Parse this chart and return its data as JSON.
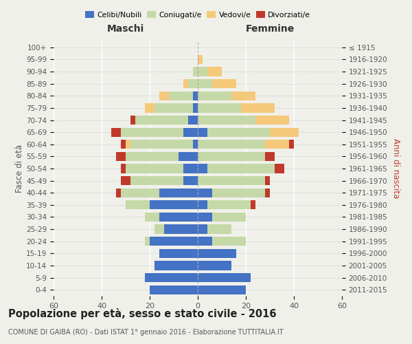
{
  "age_groups": [
    "0-4",
    "5-9",
    "10-14",
    "15-19",
    "20-24",
    "25-29",
    "30-34",
    "35-39",
    "40-44",
    "45-49",
    "50-54",
    "55-59",
    "60-64",
    "65-69",
    "70-74",
    "75-79",
    "80-84",
    "85-89",
    "90-94",
    "95-99",
    "100+"
  ],
  "birth_years": [
    "2011-2015",
    "2006-2010",
    "2001-2005",
    "1996-2000",
    "1991-1995",
    "1986-1990",
    "1981-1985",
    "1976-1980",
    "1971-1975",
    "1966-1970",
    "1961-1965",
    "1956-1960",
    "1951-1955",
    "1946-1950",
    "1941-1945",
    "1936-1940",
    "1931-1935",
    "1926-1930",
    "1921-1925",
    "1916-1920",
    "≤ 1915"
  ],
  "maschi": {
    "celibi": [
      20,
      22,
      18,
      16,
      20,
      14,
      16,
      20,
      16,
      6,
      6,
      8,
      2,
      6,
      4,
      2,
      2,
      0,
      0,
      0,
      0
    ],
    "coniugati": [
      0,
      0,
      0,
      0,
      2,
      4,
      6,
      10,
      16,
      22,
      24,
      22,
      26,
      26,
      22,
      16,
      10,
      4,
      2,
      0,
      0
    ],
    "vedovi": [
      0,
      0,
      0,
      0,
      0,
      0,
      0,
      0,
      0,
      0,
      0,
      0,
      2,
      0,
      0,
      4,
      4,
      2,
      0,
      0,
      0
    ],
    "divorziati": [
      0,
      0,
      0,
      0,
      0,
      0,
      0,
      0,
      2,
      4,
      2,
      4,
      2,
      4,
      2,
      0,
      0,
      0,
      0,
      0,
      0
    ]
  },
  "femmine": {
    "nubili": [
      20,
      22,
      14,
      16,
      6,
      4,
      6,
      4,
      6,
      0,
      4,
      0,
      0,
      4,
      0,
      0,
      0,
      0,
      0,
      0,
      0
    ],
    "coniugate": [
      0,
      0,
      0,
      0,
      14,
      10,
      14,
      18,
      22,
      28,
      28,
      28,
      28,
      26,
      24,
      18,
      14,
      6,
      4,
      0,
      0
    ],
    "vedove": [
      0,
      0,
      0,
      0,
      0,
      0,
      0,
      0,
      0,
      0,
      0,
      0,
      10,
      12,
      14,
      14,
      10,
      10,
      6,
      2,
      0
    ],
    "divorziate": [
      0,
      0,
      0,
      0,
      0,
      0,
      0,
      2,
      2,
      2,
      4,
      4,
      2,
      0,
      0,
      0,
      0,
      0,
      0,
      0,
      0
    ]
  },
  "colors": {
    "celibi_nubili": "#4472c4",
    "coniugati": "#c5d9a8",
    "vedovi": "#f5c97a",
    "divorziati": "#c0392b"
  },
  "title": "Popolazione per età, sesso e stato civile - 2016",
  "subtitle": "COMUNE DI GAIBA (RO) - Dati ISTAT 1° gennaio 2016 - Elaborazione TUTTITALIA.IT",
  "xlabel_left": "Maschi",
  "xlabel_right": "Femmine",
  "ylabel_left": "Fasce di età",
  "ylabel_right": "Anni di nascita",
  "xlim": 60,
  "background_color": "#f0f0ea"
}
